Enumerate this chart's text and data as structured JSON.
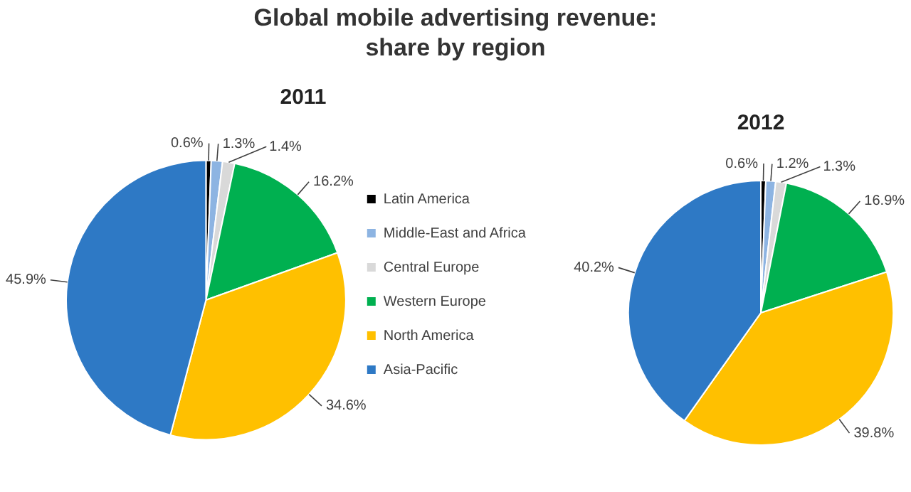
{
  "chart_data": [
    {
      "type": "pie",
      "title": "Global mobile advertising revenue: share by region",
      "subtitle": "2011",
      "categories": [
        "Latin America",
        "Middle-East and Africa",
        "Central Europe",
        "Western Europe",
        "North America",
        "Asia-Pacific"
      ],
      "values": [
        0.6,
        1.3,
        1.4,
        16.2,
        34.6,
        45.9
      ],
      "value_labels": [
        "0.6%",
        "1.3%",
        "1.4%",
        "16.2%",
        "34.6%",
        "45.9%"
      ],
      "colors": [
        "#000000",
        "#8db4e2",
        "#d9d9d9",
        "#00b050",
        "#ffc000",
        "#2e79c5"
      ],
      "legend": "right"
    },
    {
      "type": "pie",
      "subtitle": "2012",
      "categories": [
        null,
        null,
        null,
        null,
        null,
        null
      ],
      "values": [
        0.6,
        1.2,
        1.3,
        16.9,
        39.8,
        40.2
      ],
      "value_labels": [
        "0.6%",
        "1.2%",
        "1.3%",
        "16.9%",
        "39.8%",
        "40.2%"
      ],
      "colors": [
        "#000000",
        "#8db4e2",
        "#d9d9d9",
        "#00b050",
        "#ffc000",
        "#2e79c5"
      ],
      "legend": false
    }
  ]
}
